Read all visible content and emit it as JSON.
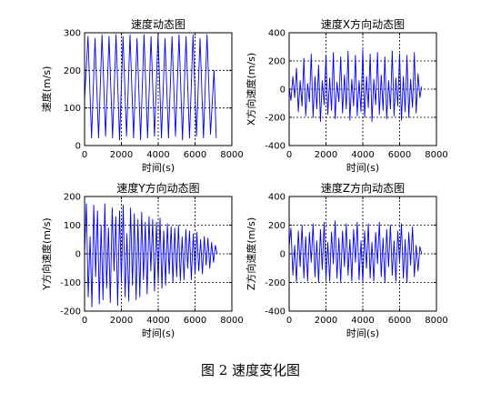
{
  "caption": "图 2  速度变化图",
  "chart_data": [
    {
      "type": "line",
      "title": "速度动态图",
      "xlabel": "时间(s)",
      "ylabel": "速度(m/s)",
      "xlim": [
        0,
        8000
      ],
      "ylim": [
        0,
        300
      ],
      "xticks": [
        "0",
        "2000",
        "4000",
        "6000",
        "8000"
      ],
      "yticks": [
        "0",
        "100",
        "200",
        "300"
      ],
      "grid": true,
      "color": "#0000ff",
      "series": [
        {
          "x": [
            0,
            190,
            380,
            570,
            760,
            950,
            1140,
            1330,
            1520,
            1710,
            1900,
            2090,
            2280,
            2470,
            2660,
            2850,
            3040,
            3230,
            3420,
            3610,
            3800,
            3990,
            4180,
            4370,
            4560,
            4750,
            4940,
            5130,
            5320,
            5510,
            5700,
            5890,
            6080,
            6270,
            6460,
            6650,
            6840,
            7030,
            7150
          ],
          "y": [
            120,
            290,
            20,
            285,
            20,
            295,
            25,
            290,
            20,
            295,
            15,
            290,
            25,
            295,
            20,
            285,
            15,
            295,
            20,
            290,
            25,
            295,
            20,
            285,
            20,
            290,
            25,
            295,
            15,
            290,
            20,
            295,
            25,
            285,
            20,
            295,
            30,
            200,
            20
          ]
        }
      ]
    },
    {
      "type": "line",
      "title": "速度X方向动态图",
      "xlabel": "时间(s)",
      "ylabel": "X方向速度(m/s)",
      "xlim": [
        0,
        8000
      ],
      "ylim": [
        -400,
        400
      ],
      "xticks": [
        "0",
        "2000",
        "4000",
        "6000",
        "8000"
      ],
      "yticks": [
        "-400",
        "-200",
        "0",
        "200",
        "400"
      ],
      "grid": true,
      "color": "#0000ff",
      "series": [
        {
          "x": [
            0,
            100,
            200,
            300,
            400,
            500,
            600,
            700,
            800,
            900,
            1000,
            1100,
            1200,
            1300,
            1400,
            1500,
            1600,
            1700,
            1800,
            1900,
            2000,
            2100,
            2200,
            2300,
            2400,
            2500,
            2600,
            2700,
            2800,
            2900,
            3000,
            3100,
            3200,
            3300,
            3400,
            3500,
            3600,
            3700,
            3800,
            3900,
            4000,
            4100,
            4200,
            4300,
            4400,
            4500,
            4600,
            4700,
            4800,
            4900,
            5000,
            5100,
            5200,
            5300,
            5400,
            5500,
            5600,
            5700,
            5800,
            5900,
            6000,
            6100,
            6200,
            6300,
            6400,
            6500,
            6600,
            6700,
            6800,
            6900,
            7000,
            7100,
            7200
          ],
          "y": [
            10,
            -80,
            90,
            -60,
            150,
            -160,
            60,
            -120,
            220,
            -190,
            40,
            -90,
            250,
            -200,
            90,
            -140,
            170,
            -230,
            60,
            -110,
            240,
            -180,
            80,
            -150,
            260,
            -210,
            50,
            -90,
            230,
            -170,
            100,
            -140,
            270,
            -220,
            70,
            -120,
            240,
            -190,
            60,
            -160,
            280,
            -200,
            90,
            -130,
            250,
            -230,
            70,
            -110,
            260,
            -180,
            100,
            -150,
            230,
            -210,
            60,
            -140,
            270,
            -190,
            80,
            -120,
            250,
            -220,
            90,
            -160,
            240,
            -200,
            70,
            -130,
            260,
            -170,
            110,
            -60,
            20
          ]
        }
      ]
    },
    {
      "type": "line",
      "title": "速度Y方向动态图",
      "xlabel": "时间(s)",
      "ylabel": "Y方向速度(m/s)",
      "xlim": [
        0,
        8000
      ],
      "ylim": [
        -200,
        200
      ],
      "xticks": [
        "0",
        "2000",
        "4000",
        "6000",
        "8000"
      ],
      "yticks": [
        "-200",
        "-100",
        "0",
        "100",
        "200"
      ],
      "grid": true,
      "color": "#0000ff",
      "series": [
        {
          "x": [
            0,
            100,
            200,
            300,
            400,
            500,
            600,
            700,
            800,
            900,
            1000,
            1100,
            1200,
            1300,
            1400,
            1500,
            1600,
            1700,
            1800,
            1900,
            2000,
            2100,
            2200,
            2300,
            2400,
            2500,
            2600,
            2700,
            2800,
            2900,
            3000,
            3100,
            3200,
            3300,
            3400,
            3500,
            3600,
            3700,
            3800,
            3900,
            4000,
            4100,
            4200,
            4300,
            4400,
            4500,
            4600,
            4700,
            4800,
            4900,
            5000,
            5100,
            5200,
            5300,
            5400,
            5500,
            5600,
            5700,
            5800,
            5900,
            6000,
            6100,
            6200,
            6300,
            6400,
            6500,
            6600,
            6700,
            6800,
            6900,
            7000,
            7100,
            7200
          ],
          "y": [
            0,
            175,
            -150,
            60,
            -185,
            170,
            -80,
            150,
            -175,
            100,
            -160,
            175,
            -120,
            90,
            -170,
            160,
            -60,
            130,
            -180,
            150,
            -100,
            170,
            -150,
            70,
            -165,
            160,
            -110,
            140,
            -160,
            120,
            -150,
            145,
            -90,
            110,
            -140,
            130,
            -60,
            120,
            -130,
            110,
            -100,
            125,
            -120,
            80,
            -110,
            105,
            -70,
            95,
            -100,
            90,
            -80,
            100,
            -95,
            60,
            -90,
            85,
            -50,
            80,
            -90,
            70,
            -70,
            75,
            -60,
            50,
            -70,
            60,
            -40,
            55,
            -50,
            40,
            -30,
            30,
            0
          ]
        }
      ]
    },
    {
      "type": "line",
      "title": "速度Z方向动态图",
      "xlabel": "时间(s)",
      "ylabel": "Z方向速度(m/s)",
      "xlim": [
        0,
        8000
      ],
      "ylim": [
        -400,
        400
      ],
      "xticks": [
        "0",
        "2000",
        "4000",
        "6000",
        "8000"
      ],
      "yticks": [
        "-400",
        "-200",
        "0",
        "200",
        "400"
      ],
      "grid": true,
      "color": "#0000ff",
      "series": [
        {
          "x": [
            0,
            100,
            200,
            300,
            400,
            500,
            600,
            700,
            800,
            900,
            1000,
            1100,
            1200,
            1300,
            1400,
            1500,
            1600,
            1700,
            1800,
            1900,
            2000,
            2100,
            2200,
            2300,
            2400,
            2500,
            2600,
            2700,
            2800,
            2900,
            3000,
            3100,
            3200,
            3300,
            3400,
            3500,
            3600,
            3700,
            3800,
            3900,
            4000,
            4100,
            4200,
            4300,
            4400,
            4500,
            4600,
            4700,
            4800,
            4900,
            5000,
            5100,
            5200,
            5300,
            5400,
            5500,
            5600,
            5700,
            5800,
            5900,
            6000,
            6100,
            6200,
            6300,
            6400,
            6500,
            6600,
            6700,
            6800,
            6900,
            7000,
            7100,
            7200
          ],
          "y": [
            50,
            180,
            -150,
            60,
            -200,
            160,
            -90,
            200,
            -170,
            120,
            -190,
            150,
            -60,
            210,
            -160,
            90,
            -200,
            170,
            -110,
            220,
            -180,
            80,
            -190,
            150,
            -70,
            230,
            -170,
            110,
            -200,
            160,
            -90,
            210,
            -150,
            100,
            -190,
            170,
            -60,
            220,
            -180,
            90,
            -200,
            160,
            -100,
            210,
            -170,
            80,
            -190,
            150,
            -70,
            220,
            -160,
            110,
            -200,
            170,
            -90,
            200,
            -150,
            90,
            -190,
            160,
            -60,
            210,
            -170,
            100,
            -200,
            150,
            -80,
            190,
            -160,
            60,
            -120,
            50,
            0
          ]
        }
      ]
    }
  ]
}
